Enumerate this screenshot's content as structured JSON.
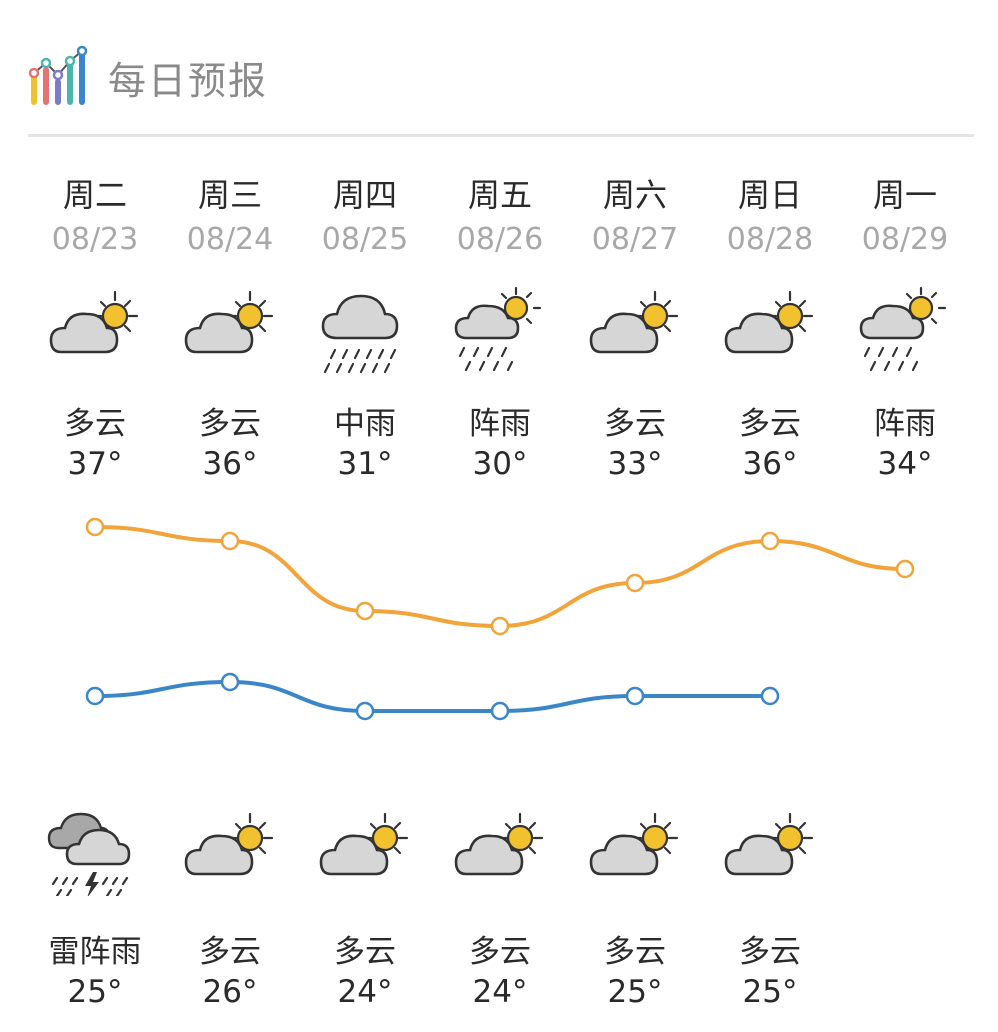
{
  "header": {
    "title": "每日预报",
    "icon": "bar-chart-icon"
  },
  "colors": {
    "high_line": "#F0A43A",
    "low_line": "#3A86C8",
    "sun": "#F2C12E",
    "cloud": "#D6D6D6"
  },
  "days": [
    {
      "weekday": "周二",
      "date": "08/23",
      "day_icon": "cloudy-sun-icon",
      "day_cond": "多云",
      "high": "37°",
      "high_value": 37,
      "night_icon": "thunder-shower-icon",
      "night_cond": "雷阵雨",
      "low": "25°",
      "low_value": 25
    },
    {
      "weekday": "周三",
      "date": "08/24",
      "day_icon": "cloudy-sun-icon",
      "day_cond": "多云",
      "high": "36°",
      "high_value": 36,
      "night_icon": "cloudy-sun-icon",
      "night_cond": "多云",
      "low": "26°",
      "low_value": 26
    },
    {
      "weekday": "周四",
      "date": "08/25",
      "day_icon": "moderate-rain-icon",
      "day_cond": "中雨",
      "high": "31°",
      "high_value": 31,
      "night_icon": "cloudy-sun-icon",
      "night_cond": "多云",
      "low": "24°",
      "low_value": 24
    },
    {
      "weekday": "周五",
      "date": "08/26",
      "day_icon": "shower-icon",
      "day_cond": "阵雨",
      "high": "30°",
      "high_value": 30,
      "night_icon": "cloudy-sun-icon",
      "night_cond": "多云",
      "low": "24°",
      "low_value": 24
    },
    {
      "weekday": "周六",
      "date": "08/27",
      "day_icon": "cloudy-sun-icon",
      "day_cond": "多云",
      "high": "33°",
      "high_value": 33,
      "night_icon": "cloudy-sun-icon",
      "night_cond": "多云",
      "low": "25°",
      "low_value": 25
    },
    {
      "weekday": "周日",
      "date": "08/28",
      "day_icon": "cloudy-sun-icon",
      "day_cond": "多云",
      "high": "36°",
      "high_value": 36,
      "night_icon": "cloudy-sun-icon",
      "night_cond": "多云",
      "low": "25°",
      "low_value": 25
    },
    {
      "weekday": "周一",
      "date": "08/29",
      "day_icon": "shower-icon",
      "day_cond": "阵雨",
      "high": "34°",
      "high_value": 34
    }
  ]
}
